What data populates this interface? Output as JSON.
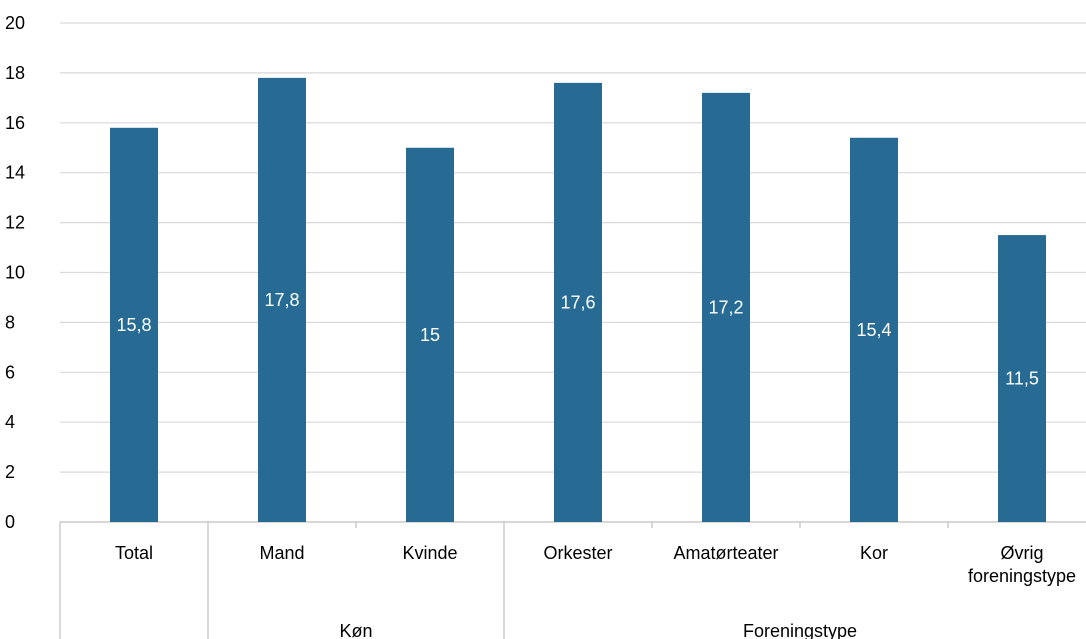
{
  "chart_data": {
    "type": "bar",
    "title": "",
    "xlabel": "",
    "ylabel": "",
    "ylim": [
      0,
      20
    ],
    "yticks": [
      "0",
      "2",
      "4",
      "6",
      "8",
      "10",
      "12",
      "14",
      "16",
      "18",
      "20"
    ],
    "grid": true,
    "categories": [
      "Total",
      "Mand",
      "Kvinde",
      "Orkester",
      "Amatørteater",
      "Kor",
      "Øvrig foreningstype"
    ],
    "category_lines": [
      [
        "Total"
      ],
      [
        "Mand"
      ],
      [
        "Kvinde"
      ],
      [
        "Orkester"
      ],
      [
        "Amatørteater"
      ],
      [
        "Kor"
      ],
      [
        "Øvrig",
        "foreningstype"
      ]
    ],
    "values": [
      15.8,
      17.8,
      15,
      17.6,
      17.2,
      15.4,
      11.5
    ],
    "data_labels": [
      "15,8",
      "17,8",
      "15",
      "17,6",
      "17,2",
      "15,4",
      "11,5"
    ],
    "groups": [
      {
        "label": "",
        "categories": [
          "Total"
        ]
      },
      {
        "label": "Køn",
        "categories": [
          "Mand",
          "Kvinde"
        ]
      },
      {
        "label": "Foreningstype",
        "categories": [
          "Orkester",
          "Amatørteater",
          "Kor",
          "Øvrig foreningstype"
        ]
      }
    ],
    "colors": {
      "bar": "#276A93",
      "grid": "#D9D9D9",
      "axis_text": "#000000",
      "data_label": "#ffffff",
      "separator": "#BFBFBF"
    }
  }
}
